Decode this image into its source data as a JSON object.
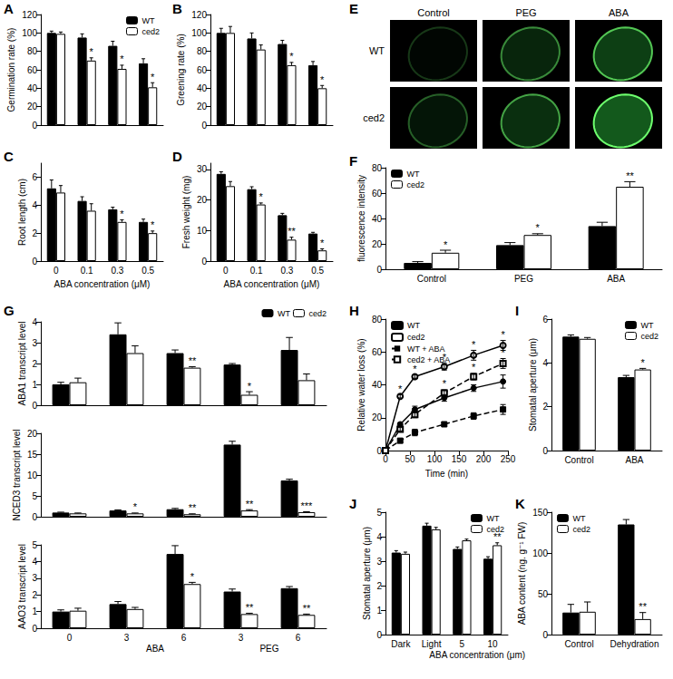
{
  "chart_data": [
    {
      "panel": "A",
      "type": "bar",
      "ylabel": "Germination rate (%)",
      "categories": [
        "0",
        "0.1",
        "0.3",
        "0.5"
      ],
      "ylim": [
        0,
        120
      ],
      "yticks": [
        0,
        20,
        40,
        60,
        80,
        100,
        120
      ],
      "grid": false,
      "legend": "upper right",
      "tick_labels": "y",
      "series": [
        {
          "name": "WT",
          "color": "#000000",
          "values": [
            100,
            95,
            86,
            67
          ],
          "errors": [
            2,
            4,
            5,
            5
          ]
        },
        {
          "name": "ced2",
          "color": "#ffffff",
          "values": [
            99,
            70,
            61,
            41
          ],
          "errors": [
            2,
            3,
            4,
            5
          ],
          "annotations": [
            null,
            "*",
            "*",
            "*"
          ]
        }
      ]
    },
    {
      "panel": "B",
      "type": "bar",
      "ylabel": "Greening rate (%)",
      "categories": [
        "0",
        "0.1",
        "0.3",
        "0.5"
      ],
      "ylim": [
        0,
        120
      ],
      "yticks": [
        0,
        20,
        40,
        60,
        80,
        100,
        120
      ],
      "grid": false,
      "tick_labels": "y",
      "series": [
        {
          "name": "WT",
          "color": "#000000",
          "values": [
            100,
            94,
            88,
            65
          ],
          "errors": [
            5,
            6,
            4,
            4
          ]
        },
        {
          "name": "ced2",
          "color": "#ffffff",
          "values": [
            100,
            82,
            65,
            40
          ],
          "errors": [
            7,
            5,
            3,
            3
          ],
          "annotations": [
            null,
            null,
            "*",
            "*"
          ]
        }
      ]
    },
    {
      "panel": "C",
      "type": "bar",
      "xlabel": "ABA concentration (μM)",
      "ylabel": "Root length (cm)",
      "categories": [
        "0",
        "0.1",
        "0.3",
        "0.5"
      ],
      "ylim": [
        0,
        7
      ],
      "yticks": [
        0,
        2,
        4,
        6
      ],
      "grid": false,
      "series": [
        {
          "name": "WT",
          "color": "#000000",
          "values": [
            5.2,
            4.3,
            3.7,
            2.8
          ],
          "errors": [
            0.6,
            0.3,
            0.15,
            0.2
          ]
        },
        {
          "name": "ced2",
          "color": "#ffffff",
          "values": [
            4.9,
            3.6,
            2.8,
            2.0
          ],
          "errors": [
            0.5,
            0.5,
            0.15,
            0.15
          ],
          "annotations": [
            null,
            null,
            "*",
            "*"
          ]
        }
      ]
    },
    {
      "panel": "D",
      "type": "bar",
      "xlabel": "ABA concentration (μM)",
      "ylabel": "Fresh weight (mg)",
      "categories": [
        "0",
        "0.1",
        "0.3",
        "0.5"
      ],
      "ylim": [
        0,
        32
      ],
      "yticks": [
        0,
        10,
        20,
        30
      ],
      "grid": false,
      "series": [
        {
          "name": "WT",
          "color": "#000000",
          "values": [
            28.5,
            23.5,
            15,
            9
          ],
          "errors": [
            0.7,
            0.8,
            0.6,
            0.4
          ]
        },
        {
          "name": "ced2",
          "color": "#ffffff",
          "values": [
            24.5,
            18.5,
            7,
            3.5
          ],
          "errors": [
            1.5,
            0.5,
            0.8,
            0.5
          ],
          "annotations": [
            null,
            "*",
            "**",
            "*"
          ]
        }
      ]
    },
    {
      "panel": "E",
      "type": "image",
      "columns": [
        "Control",
        "PEG",
        "ABA"
      ],
      "rows": [
        "WT",
        "ced2"
      ]
    },
    {
      "panel": "F",
      "type": "bar",
      "ylabel": "fluorescence intensity",
      "categories": [
        "Control",
        "PEG",
        "ABA"
      ],
      "ylim": [
        0,
        80
      ],
      "yticks": [
        0,
        20,
        40,
        60,
        80
      ],
      "grid": false,
      "legend": "upper left",
      "series": [
        {
          "name": "WT",
          "color": "#000000",
          "values": [
            5,
            19,
            34
          ],
          "errors": [
            1,
            2,
            3
          ]
        },
        {
          "name": "ced2",
          "color": "#ffffff",
          "values": [
            13,
            27,
            65
          ],
          "errors": [
            2,
            1,
            4
          ],
          "annotations": [
            "*",
            "*",
            "**"
          ]
        }
      ]
    },
    {
      "panel": "G",
      "type": "bar",
      "ylabel": "ABA1 transcript level",
      "categories": [
        "0",
        "3",
        "6",
        "3",
        "6"
      ],
      "ylim": [
        0,
        4
      ],
      "yticks": [
        0,
        1,
        2,
        3,
        4
      ],
      "grid": false,
      "legend": "upper right",
      "tick_labels": "y",
      "series": [
        {
          "name": "WT",
          "color": "#000000",
          "values": [
            1.0,
            3.4,
            2.5,
            1.95,
            2.65
          ],
          "errors": [
            0.1,
            0.55,
            0.15,
            0.05,
            0.6
          ]
        },
        {
          "name": "ced2",
          "color": "#ffffff",
          "values": [
            1.1,
            2.5,
            1.8,
            0.5,
            1.2
          ],
          "errors": [
            0.2,
            0.35,
            0.05,
            0.15,
            0.3
          ],
          "annotations": [
            null,
            null,
            "**",
            "*",
            null
          ]
        }
      ]
    },
    {
      "type": "bar",
      "ylabel": "NCED3 transcript level",
      "categories": [
        "0",
        "3",
        "6",
        "3",
        "6"
      ],
      "ylim": [
        0,
        20
      ],
      "yticks": [
        0,
        5,
        10,
        15,
        20
      ],
      "grid": false,
      "tick_labels": "y",
      "series": [
        {
          "name": "WT",
          "color": "#000000",
          "values": [
            1.0,
            1.5,
            1.8,
            17.3,
            8.7
          ],
          "errors": [
            0.1,
            0.15,
            0.2,
            0.8,
            0.3
          ]
        },
        {
          "name": "ced2",
          "color": "#ffffff",
          "values": [
            0.8,
            0.8,
            0.6,
            1.5,
            1.1
          ],
          "errors": [
            0.1,
            0.1,
            0.1,
            0.2,
            0.1
          ],
          "annotations": [
            null,
            "*",
            "**",
            "**",
            "***"
          ]
        }
      ]
    },
    {
      "type": "bar",
      "ylabel": "AAO3 transcript level",
      "categories": [
        "0",
        "3",
        "6",
        "3",
        "6"
      ],
      "group_labels": [
        null,
        "ABA",
        "ABA",
        "PEG",
        "PEG"
      ],
      "ylim": [
        0,
        5
      ],
      "yticks": [
        0,
        1,
        2,
        3,
        4,
        5
      ],
      "grid": false,
      "series": [
        {
          "name": "WT",
          "color": "#000000",
          "values": [
            1.0,
            1.45,
            4.45,
            2.2,
            2.4
          ],
          "errors": [
            0.1,
            0.15,
            0.5,
            0.15,
            0.1
          ]
        },
        {
          "name": "ced2",
          "color": "#ffffff",
          "values": [
            1.05,
            1.15,
            2.65,
            0.85,
            0.8
          ],
          "errors": [
            0.15,
            0.1,
            0.1,
            0.05,
            0.05
          ],
          "annotations": [
            null,
            null,
            "*",
            "**",
            "**"
          ]
        }
      ]
    },
    {
      "panel": "H",
      "type": "line",
      "xlabel": "Time (min)",
      "ylabel": "Relative water loss (%)",
      "x": [
        0,
        30,
        60,
        120,
        180,
        240
      ],
      "xlim": [
        0,
        250
      ],
      "xticks": [
        0,
        50,
        100,
        150,
        200,
        250
      ],
      "ylim": [
        0,
        80
      ],
      "yticks": [
        0,
        20,
        40,
        60,
        80
      ],
      "grid": false,
      "legend": "upper left",
      "series": [
        {
          "name": "WT",
          "color": "#000000",
          "marker": "circle",
          "line_style": "solid",
          "values": [
            0,
            16,
            25,
            32,
            38,
            42
          ],
          "errors": [
            0,
            1,
            2,
            2,
            2,
            4
          ]
        },
        {
          "name": "ced2",
          "color": "#000000",
          "marker": "open circle",
          "line_style": "solid",
          "values": [
            0,
            33,
            45,
            51,
            58,
            64
          ],
          "errors": [
            0,
            1,
            1,
            2,
            3,
            3
          ],
          "annotations": [
            null,
            "*",
            "*",
            "*",
            "*",
            "*"
          ]
        },
        {
          "name": "WT + ABA",
          "color": "#000000",
          "marker": "square",
          "line_style": "dashed",
          "values": [
            0,
            6,
            11,
            16,
            21,
            25
          ],
          "errors": [
            0,
            1,
            2,
            1,
            2,
            3
          ]
        },
        {
          "name": "ced2 + ABA",
          "color": "#000000",
          "marker": "open square",
          "line_style": "dashed",
          "values": [
            0,
            13,
            22,
            35,
            45,
            53
          ],
          "errors": [
            0,
            1,
            2,
            2,
            2,
            3
          ],
          "annotations": [
            null,
            null,
            null,
            "*",
            "*",
            "*"
          ]
        }
      ]
    },
    {
      "panel": "I",
      "type": "bar",
      "ylabel": "Stomatal aperture (μm)",
      "categories": [
        "Control",
        "ABA"
      ],
      "ylim": [
        0,
        6
      ],
      "yticks": [
        0,
        2,
        4,
        6
      ],
      "grid": false,
      "legend": "upper right",
      "series": [
        {
          "name": "WT",
          "color": "#000000",
          "values": [
            5.2,
            3.35
          ],
          "errors": [
            0.08,
            0.08
          ]
        },
        {
          "name": "ced2",
          "color": "#ffffff",
          "values": [
            5.1,
            3.7
          ],
          "errors": [
            0.06,
            0.05
          ],
          "annotations": [
            null,
            "*"
          ]
        }
      ]
    },
    {
      "panel": "J",
      "type": "bar",
      "ylabel": "Stomatal aperture (μm)",
      "categories": [
        "Dark",
        "Light",
        "5",
        "10"
      ],
      "group_labels": [
        null,
        null,
        "ABA concentration (μm)",
        "ABA concentration (μm)"
      ],
      "ylim": [
        0,
        5
      ],
      "yticks": [
        0,
        1,
        2,
        3,
        4,
        5
      ],
      "grid": false,
      "legend": "upper right",
      "series": [
        {
          "name": "WT",
          "color": "#000000",
          "values": [
            3.35,
            4.45,
            3.5,
            3.1
          ],
          "errors": [
            0.08,
            0.1,
            0.08,
            0.08
          ]
        },
        {
          "name": "ced2",
          "color": "#ffffff",
          "values": [
            3.3,
            4.3,
            3.85,
            3.65
          ],
          "errors": [
            0.07,
            0.08,
            0.05,
            0.1
          ],
          "annotations": [
            null,
            null,
            null,
            "**"
          ]
        }
      ]
    },
    {
      "panel": "K",
      "type": "bar",
      "ylabel": "ABA content (ng. g⁻¹ FW)",
      "categories": [
        "Control",
        "Dehydration"
      ],
      "ylim": [
        0,
        150
      ],
      "yticks": [
        0,
        50,
        100,
        150
      ],
      "grid": false,
      "legend": "upper left",
      "series": [
        {
          "name": "WT",
          "color": "#000000",
          "values": [
            27,
            135
          ],
          "errors": [
            10,
            6
          ]
        },
        {
          "name": "ced2",
          "color": "#ffffff",
          "values": [
            28,
            19
          ],
          "errors": [
            12,
            8
          ],
          "annotations": [
            null,
            "**"
          ]
        }
      ]
    }
  ]
}
